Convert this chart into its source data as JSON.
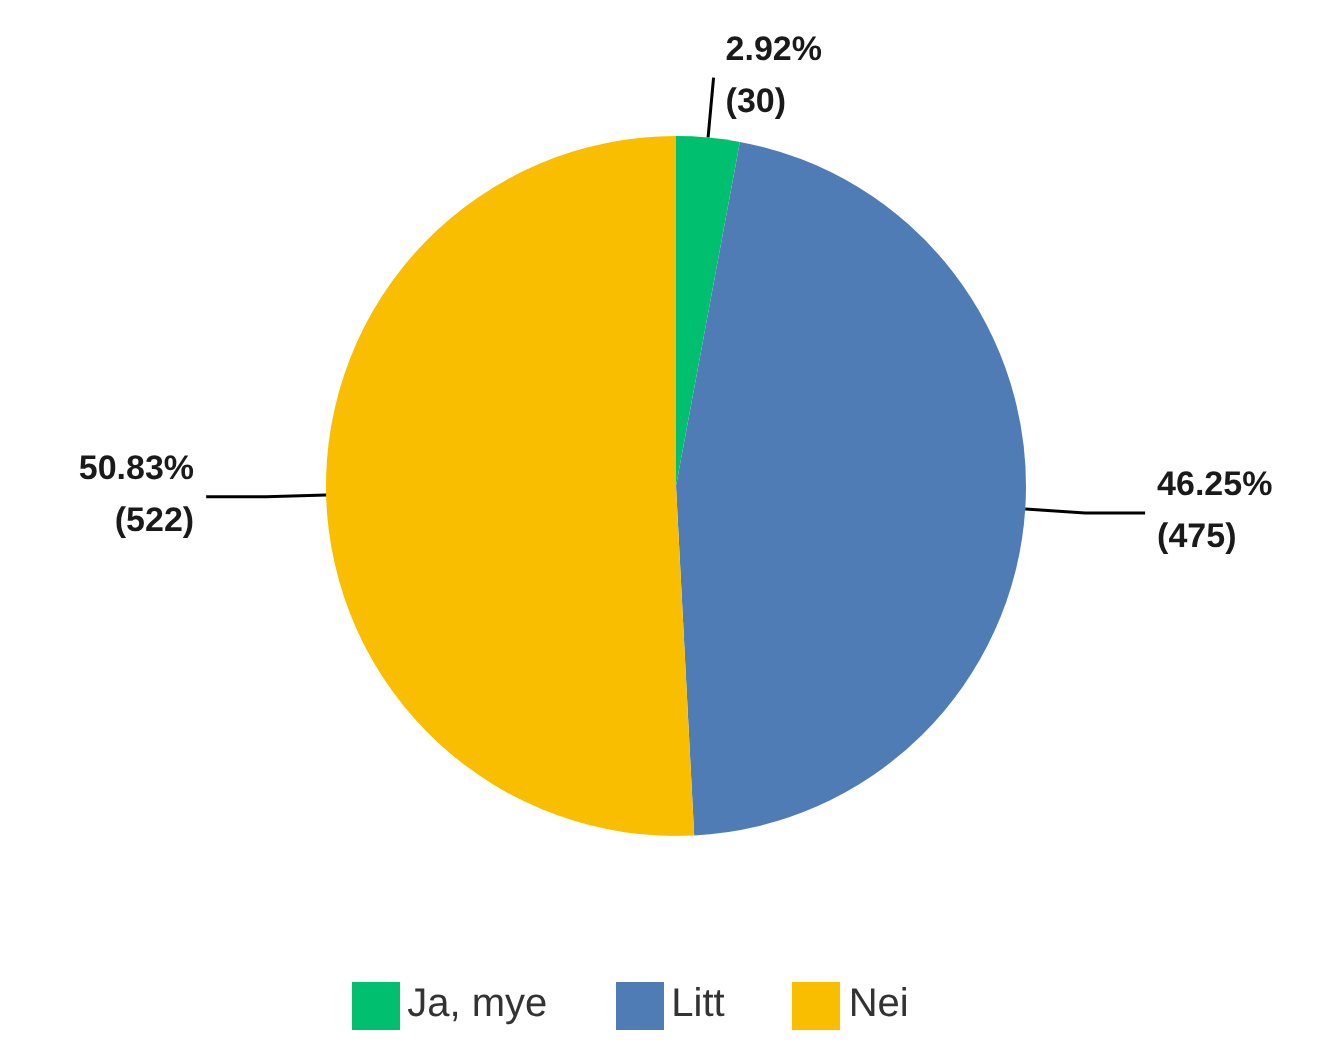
{
  "chart_data": {
    "type": "pie",
    "categories": [
      "Ja, mye",
      "Litt",
      "Nei"
    ],
    "values": [
      30,
      475,
      522
    ],
    "colors": [
      "#00bf6f",
      "#507cb6",
      "#f9be00"
    ],
    "value_labels": [
      "2.92%\n(30)",
      "46.25%\n(475)",
      "50.83%\n(522)"
    ],
    "legend": "bottom"
  }
}
